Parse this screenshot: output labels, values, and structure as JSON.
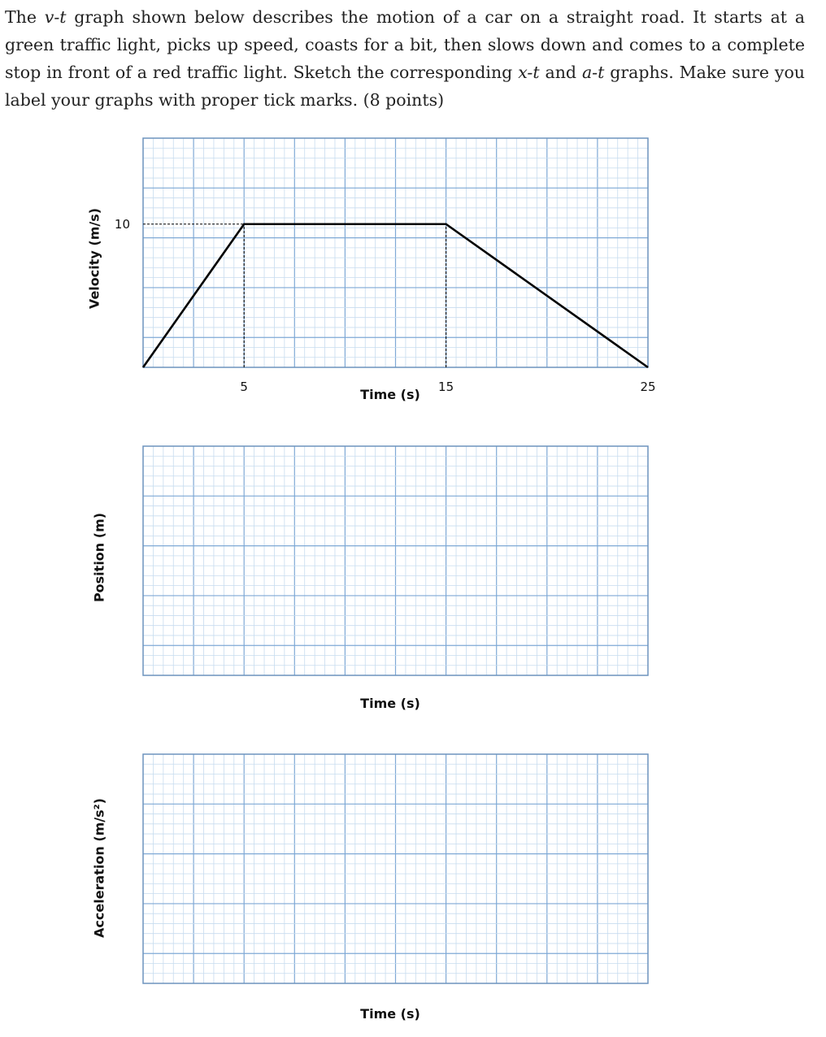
{
  "problem": {
    "part1": "The ",
    "vt": "v-t",
    "part2": " graph shown below describes the motion of a car on a straight road. It starts at a green traffic light, picks up speed, coasts for a bit, then slows down and comes to a complete stop in front of a red traffic light. Sketch the corresponding ",
    "xt": "x-t",
    "part3": " and ",
    "at": "a-t",
    "part4": " graphs. Make sure you label your graphs with proper tick marks. (8 points)"
  },
  "graphs": {
    "velocity": {
      "ylabel": "Velocity (m/s)",
      "xlabel": "Time (s)"
    },
    "position": {
      "ylabel": "Position (m)",
      "xlabel": "Time (s)"
    },
    "acceleration": {
      "ylabel": "Acceleration (m/s²)",
      "xlabel": "Time (s)"
    }
  },
  "colors": {
    "grid_major": "#7fa9d6",
    "grid_minor": "#c7dcef",
    "frame": "#6d93bd",
    "curve": "#000000"
  },
  "chart_data": [
    {
      "type": "line",
      "xlabel": "Time (s)",
      "ylabel": "Velocity (m/s)",
      "x": [
        0,
        5,
        15,
        25
      ],
      "y": [
        0,
        10,
        10,
        0
      ],
      "xlim": [
        0,
        25
      ],
      "ylim": [
        0,
        16
      ],
      "x_ticks": [
        5,
        15,
        25
      ],
      "x_tick_labels": [
        "5",
        "15",
        "25"
      ],
      "y_ticks": [
        10
      ],
      "y_tick_labels": [
        "10"
      ],
      "reference_lines": [
        {
          "from": [
            0,
            10
          ],
          "to": [
            5,
            10
          ],
          "style": "dashed"
        },
        {
          "from": [
            5,
            0
          ],
          "to": [
            5,
            10
          ],
          "style": "dashed"
        },
        {
          "from": [
            15,
            0
          ],
          "to": [
            15,
            10
          ],
          "style": "dashed"
        }
      ],
      "grid": true
    },
    {
      "type": "line",
      "xlabel": "Time (s)",
      "ylabel": "Position (m)",
      "series": [],
      "grid": true
    },
    {
      "type": "line",
      "xlabel": "Time (s)",
      "ylabel": "Acceleration (m/s²)",
      "series": [],
      "grid": true
    }
  ]
}
